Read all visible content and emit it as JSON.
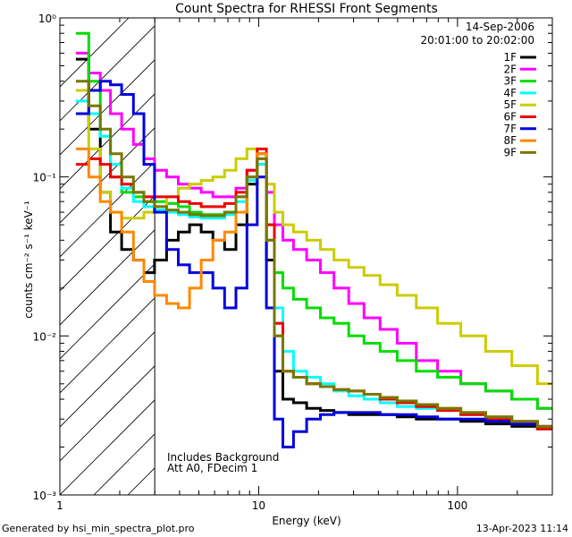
{
  "chart_data": {
    "type": "line",
    "title": "Count Spectra for RHESSI Front Segments",
    "xlabel": "Energy (keV)",
    "ylabel": "counts cm⁻² s⁻¹ keV⁻¹",
    "xscale": "log",
    "yscale": "log",
    "xlim": [
      1,
      300
    ],
    "ylim": [
      0.001,
      1
    ],
    "x_ticks": [
      1,
      10,
      100
    ],
    "x_tick_labels": [
      "1",
      "10",
      "100"
    ],
    "y_ticks": [
      1,
      0.1,
      0.01,
      0.001
    ],
    "y_tick_labels": [
      "10⁰",
      "10⁻¹",
      "10⁻²",
      "10⁻³"
    ],
    "date": "14-Sep-2006",
    "time_range": "20:01:00 to 20:02:00",
    "legend_position": "top-right",
    "annotations": [
      "Includes Background",
      "Att A0, FDecim 1"
    ],
    "shaded_region_keV": [
      1,
      3
    ],
    "series": [
      {
        "name": "1F",
        "color": "#000000",
        "x": [
          1.3,
          1.5,
          1.7,
          1.9,
          2.2,
          2.5,
          2.8,
          3.2,
          3.7,
          4.2,
          4.8,
          5.5,
          6.3,
          7.2,
          8.2,
          9.3,
          10.4,
          11.5,
          12.5,
          14,
          16,
          19,
          22,
          26,
          31,
          37,
          45,
          55,
          70,
          90,
          120,
          160,
          220,
          290
        ],
        "y": [
          0.55,
          0.2,
          0.08,
          0.045,
          0.035,
          0.03,
          0.025,
          0.03,
          0.04,
          0.045,
          0.05,
          0.045,
          0.04,
          0.035,
          0.05,
          0.09,
          0.14,
          0.03,
          0.006,
          0.004,
          0.0038,
          0.0035,
          0.0034,
          0.0033,
          0.0032,
          0.0032,
          0.0032,
          0.0031,
          0.003,
          0.003,
          0.0029,
          0.0028,
          0.0027,
          0.0026
        ]
      },
      {
        "name": "2F",
        "color": "#ff00ff",
        "x": [
          1.3,
          1.5,
          1.7,
          1.9,
          2.2,
          2.5,
          2.8,
          3.2,
          3.7,
          4.2,
          4.8,
          5.5,
          6.3,
          7.2,
          8.2,
          9.3,
          10.4,
          11.5,
          12.5,
          14,
          16,
          19,
          22,
          26,
          31,
          37,
          45,
          55,
          70,
          90,
          120,
          160,
          220,
          290
        ],
        "y": [
          0.6,
          0.45,
          0.35,
          0.25,
          0.2,
          0.16,
          0.13,
          0.11,
          0.1,
          0.09,
          0.085,
          0.08,
          0.075,
          0.075,
          0.085,
          0.11,
          0.13,
          0.08,
          0.05,
          0.04,
          0.035,
          0.03,
          0.025,
          0.02,
          0.016,
          0.013,
          0.011,
          0.009,
          0.007,
          0.006,
          0.005,
          0.0045,
          0.004,
          0.0035
        ]
      },
      {
        "name": "3F",
        "color": "#00dd00",
        "x": [
          1.3,
          1.5,
          1.7,
          1.9,
          2.2,
          2.5,
          2.8,
          3.2,
          3.7,
          4.2,
          4.8,
          5.5,
          6.3,
          7.2,
          8.2,
          9.3,
          10.4,
          11.5,
          12.5,
          14,
          16,
          19,
          22,
          26,
          31,
          37,
          45,
          55,
          70,
          90,
          120,
          160,
          220,
          290
        ],
        "y": [
          0.8,
          0.4,
          0.18,
          0.1,
          0.08,
          0.075,
          0.07,
          0.07,
          0.068,
          0.065,
          0.06,
          0.058,
          0.058,
          0.06,
          0.075,
          0.1,
          0.12,
          0.05,
          0.025,
          0.02,
          0.017,
          0.015,
          0.013,
          0.012,
          0.01,
          0.009,
          0.008,
          0.007,
          0.006,
          0.0055,
          0.005,
          0.0045,
          0.004,
          0.0035
        ]
      },
      {
        "name": "4F",
        "color": "#00ffff",
        "x": [
          1.3,
          1.5,
          1.7,
          1.9,
          2.2,
          2.5,
          2.8,
          3.2,
          3.7,
          4.2,
          4.8,
          5.5,
          6.3,
          7.2,
          8.2,
          9.3,
          10.4,
          11.5,
          12.5,
          14,
          16,
          19,
          22,
          26,
          31,
          37,
          45,
          55,
          70,
          90,
          120,
          160,
          220,
          290
        ],
        "y": [
          0.3,
          0.25,
          0.18,
          0.12,
          0.085,
          0.07,
          0.065,
          0.062,
          0.06,
          0.058,
          0.056,
          0.055,
          0.055,
          0.058,
          0.07,
          0.095,
          0.12,
          0.04,
          0.015,
          0.008,
          0.006,
          0.0055,
          0.005,
          0.0045,
          0.0042,
          0.004,
          0.0038,
          0.0036,
          0.0035,
          0.0034,
          0.0032,
          0.003,
          0.0028,
          0.0026
        ]
      },
      {
        "name": "5F",
        "color": "#cccc00",
        "x": [
          1.3,
          1.5,
          1.7,
          1.9,
          2.2,
          2.5,
          2.8,
          3.2,
          3.7,
          4.2,
          4.8,
          5.5,
          6.3,
          7.2,
          8.2,
          9.3,
          10.4,
          11.5,
          12.5,
          14,
          16,
          19,
          22,
          26,
          31,
          37,
          45,
          55,
          70,
          90,
          120,
          160,
          220,
          290
        ],
        "y": [
          0.35,
          0.15,
          0.08,
          0.06,
          0.055,
          0.055,
          0.06,
          0.065,
          0.075,
          0.085,
          0.09,
          0.095,
          0.1,
          0.11,
          0.13,
          0.15,
          0.13,
          0.09,
          0.06,
          0.05,
          0.045,
          0.04,
          0.035,
          0.03,
          0.027,
          0.024,
          0.021,
          0.018,
          0.015,
          0.012,
          0.01,
          0.008,
          0.0065,
          0.005
        ]
      },
      {
        "name": "6F",
        "color": "#ee0000",
        "x": [
          1.3,
          1.5,
          1.7,
          1.9,
          2.2,
          2.5,
          2.8,
          3.2,
          3.7,
          4.2,
          4.8,
          5.5,
          6.3,
          7.2,
          8.2,
          9.3,
          10.4,
          11.5,
          12.5,
          14,
          16,
          19,
          22,
          26,
          31,
          37,
          45,
          55,
          70,
          90,
          120,
          160,
          220,
          290
        ],
        "y": [
          0.12,
          0.13,
          0.12,
          0.1,
          0.09,
          0.08,
          0.075,
          0.075,
          0.075,
          0.07,
          0.068,
          0.065,
          0.065,
          0.068,
          0.08,
          0.11,
          0.15,
          0.05,
          0.012,
          0.006,
          0.0055,
          0.005,
          0.0048,
          0.0046,
          0.0045,
          0.0043,
          0.004,
          0.0038,
          0.0036,
          0.0034,
          0.0032,
          0.003,
          0.0028,
          0.0026
        ]
      },
      {
        "name": "7F",
        "color": "#0000dd",
        "x": [
          1.3,
          1.5,
          1.7,
          1.9,
          2.2,
          2.5,
          2.8,
          3.2,
          3.7,
          4.2,
          4.8,
          5.5,
          6.3,
          7.2,
          8.2,
          9.3,
          10.4,
          11.5,
          12.5,
          14,
          16,
          19,
          22,
          26,
          31,
          37,
          45,
          55,
          70,
          90,
          120,
          160,
          220,
          290
        ],
        "y": [
          0.25,
          0.35,
          0.4,
          0.38,
          0.33,
          0.25,
          0.12,
          0.06,
          0.035,
          0.028,
          0.025,
          0.025,
          0.02,
          0.015,
          0.02,
          0.05,
          0.1,
          0.015,
          0.003,
          0.002,
          0.0025,
          0.003,
          0.0032,
          0.0033,
          0.0033,
          0.0033,
          0.0032,
          0.0032,
          0.0031,
          0.003,
          0.003,
          0.0029,
          0.0028,
          0.0027
        ]
      },
      {
        "name": "8F",
        "color": "#ff8800",
        "x": [
          1.3,
          1.5,
          1.7,
          1.9,
          2.2,
          2.5,
          2.8,
          3.2,
          3.7,
          4.2,
          4.8,
          5.5,
          6.3,
          7.2,
          8.2,
          9.3,
          10.4,
          11.5,
          12.5,
          14,
          16,
          19,
          22,
          26,
          31,
          37,
          45,
          55,
          70,
          90,
          120,
          160,
          220,
          290
        ],
        "y": [
          0.15,
          0.1,
          0.07,
          0.06,
          0.045,
          0.03,
          0.022,
          0.018,
          0.016,
          0.015,
          0.02,
          0.03,
          0.04,
          0.045,
          0.06,
          0.1,
          0.14,
          0.04,
          0.01,
          0.006,
          0.0055,
          0.005,
          0.0048,
          0.0046,
          0.0045,
          0.0043,
          0.0041,
          0.0039,
          0.0037,
          0.0035,
          0.0033,
          0.0031,
          0.0029,
          0.0027
        ]
      },
      {
        "name": "9F",
        "color": "#777700",
        "x": [
          1.3,
          1.5,
          1.7,
          1.9,
          2.2,
          2.5,
          2.8,
          3.2,
          3.7,
          4.2,
          4.8,
          5.5,
          6.3,
          7.2,
          8.2,
          9.3,
          10.4,
          11.5,
          12.5,
          14,
          16,
          19,
          22,
          26,
          31,
          37,
          45,
          55,
          70,
          90,
          120,
          160,
          220,
          290
        ],
        "y": [
          0.4,
          0.28,
          0.2,
          0.14,
          0.1,
          0.08,
          0.07,
          0.065,
          0.062,
          0.06,
          0.058,
          0.057,
          0.057,
          0.06,
          0.075,
          0.1,
          0.13,
          0.04,
          0.01,
          0.006,
          0.0055,
          0.005,
          0.0048,
          0.0046,
          0.0045,
          0.0043,
          0.0041,
          0.0039,
          0.0037,
          0.0035,
          0.0033,
          0.0031,
          0.0029,
          0.0027
        ]
      }
    ]
  },
  "footer": {
    "generated_by": "Generated by hsi_min_spectra_plot.pro",
    "timestamp": "13-Apr-2023 11:14"
  }
}
